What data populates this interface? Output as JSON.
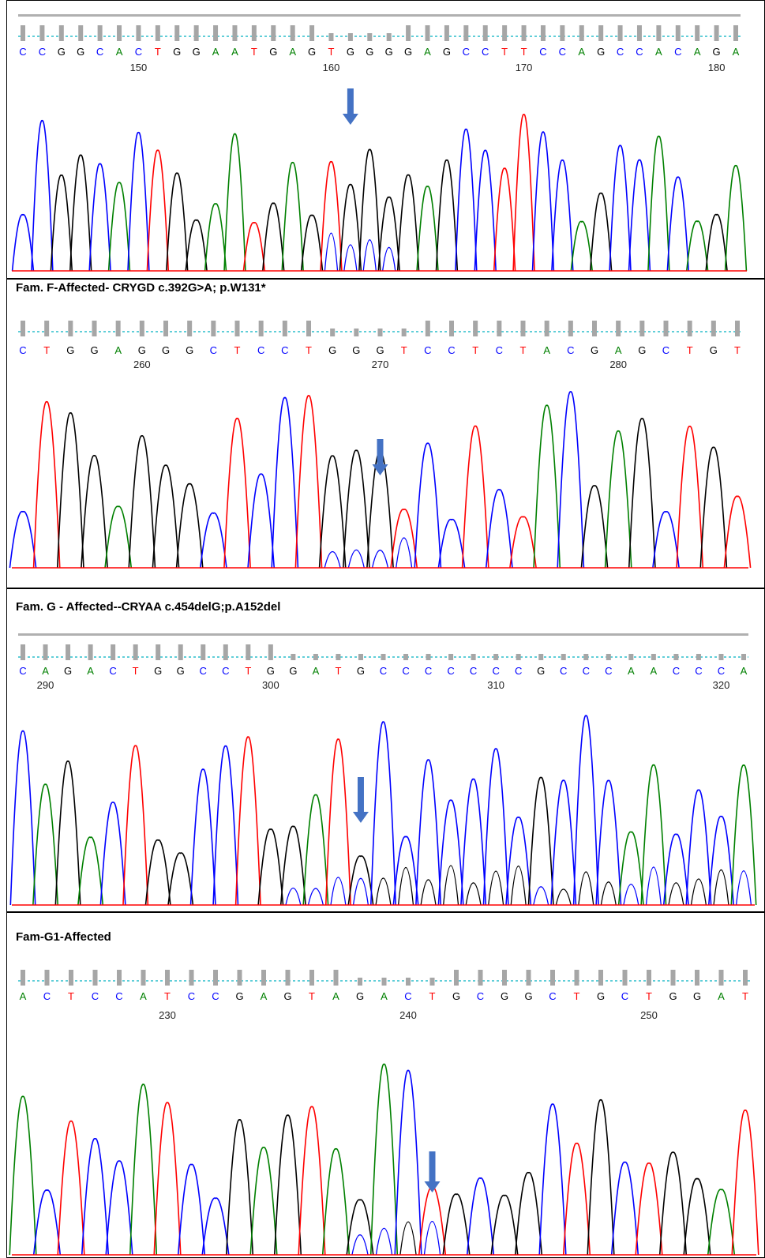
{
  "colors": {
    "A": "#008000",
    "C": "#0000ff",
    "G": "#000000",
    "T": "#ff0000",
    "quality": "#a6a6a6",
    "dotted": "#00b0c0",
    "arrow": "#4472c4"
  },
  "panels": [
    {
      "caption": "",
      "sequence": "CCGGCACTGGAATGAGTGGGGAGCCTTCCAGCCACAGA",
      "positions": [
        {
          "value": "150",
          "index": 6
        },
        {
          "value": "160",
          "index": 16
        },
        {
          "value": "170",
          "index": 26
        },
        {
          "value": "180",
          "index": 36
        }
      ],
      "lowQuality": [
        16,
        17,
        18,
        19
      ],
      "arrowIndex": 17
    },
    {
      "caption": "Fam. F-Affected- CRYGD c.392G>A; p.W131*",
      "sequence": "CTGGAGGGCTCCTGGGTCCTCTACGAGCTGT",
      "positions": [
        {
          "value": "260",
          "index": 5
        },
        {
          "value": "270",
          "index": 15
        },
        {
          "value": "280",
          "index": 25
        }
      ],
      "lowQuality": [
        13,
        14,
        15,
        16
      ],
      "arrowIndex": 15
    },
    {
      "caption": "Fam. G - Affected--CRYAA c.454delG;p.A152del",
      "sequence": "CAGACTGGCCTGGATGCCCCCCCGCCCAACCCA",
      "positions": [
        {
          "value": "290",
          "index": 1
        },
        {
          "value": "300",
          "index": 11
        },
        {
          "value": "310",
          "index": 21
        },
        {
          "value": "320",
          "index": 31
        }
      ],
      "lowQuality": [
        12,
        13,
        14,
        15,
        16,
        17,
        18,
        19,
        20,
        21,
        22,
        23,
        24,
        25,
        26,
        27,
        28,
        29,
        30,
        31,
        32
      ],
      "arrowIndex": 15
    },
    {
      "caption": "Fam-G1-Affected",
      "sequence": "ACTCCATCCGAGTAGACTGCGGCTGCTGGAT",
      "positions": [
        {
          "value": "230",
          "index": 6
        },
        {
          "value": "240",
          "index": 16
        },
        {
          "value": "250",
          "index": 26
        }
      ],
      "lowQuality": [
        14,
        15,
        16,
        17
      ],
      "arrowIndex": 17
    }
  ]
}
